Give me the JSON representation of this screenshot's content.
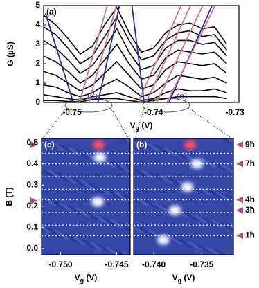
{
  "chart_data": [
    {
      "type": "line",
      "panel_label": "(a)",
      "ylabel": "G (µS)",
      "xlabel": [
        "V",
        "g",
        " (V)"
      ],
      "xlim": [
        -0.7535,
        -0.7295
      ],
      "ylim": [
        0,
        5
      ],
      "xticks": [
        -0.75,
        -0.74,
        -0.73
      ],
      "yticks": [
        0,
        1,
        2,
        3,
        4,
        5
      ],
      "annotations": [
        {
          "text": "(β)",
          "x": -0.7475,
          "y": 0.1
        },
        {
          "text": "(α)",
          "x": -0.7365,
          "y": 0.1
        }
      ],
      "series": [
        {
          "color": "#000000",
          "x": [
            -0.7535,
            -0.752,
            -0.7505,
            -0.749,
            -0.7475,
            -0.746,
            -0.7445,
            -0.743,
            -0.7415,
            -0.74,
            -0.7385,
            -0.737,
            -0.7355,
            -0.734,
            -0.7325,
            -0.731
          ],
          "values": [
            4.5,
            4.0,
            3.3,
            2.5,
            2.9,
            4.0,
            4.9,
            3.6,
            2.6,
            2.8,
            3.6,
            4.0,
            4.1,
            3.8,
            3.9,
            3.0
          ]
        },
        {
          "color": "#000000",
          "x": [
            -0.7535,
            -0.752,
            -0.7505,
            -0.749,
            -0.7475,
            -0.746,
            -0.7445,
            -0.743,
            -0.7415,
            -0.74,
            -0.7385,
            -0.737,
            -0.7355,
            -0.734,
            -0.7325,
            -0.731
          ],
          "values": [
            3.9,
            3.5,
            2.8,
            2.0,
            2.4,
            3.4,
            4.4,
            3.2,
            2.2,
            2.4,
            3.2,
            3.6,
            3.7,
            3.4,
            3.5,
            2.7
          ]
        },
        {
          "color": "#000000",
          "x": [
            -0.7535,
            -0.752,
            -0.7505,
            -0.749,
            -0.7475,
            -0.746,
            -0.7445,
            -0.743,
            -0.7415,
            -0.74,
            -0.7385,
            -0.737,
            -0.7355,
            -0.734,
            -0.7325,
            -0.731
          ],
          "values": [
            3.2,
            2.8,
            2.2,
            1.5,
            1.9,
            2.8,
            3.8,
            2.6,
            1.7,
            1.9,
            2.8,
            3.2,
            3.2,
            3.0,
            3.1,
            2.4
          ]
        },
        {
          "color": "#000000",
          "x": [
            -0.7535,
            -0.752,
            -0.7505,
            -0.749,
            -0.7475,
            -0.746,
            -0.7445,
            -0.743,
            -0.7415,
            -0.74,
            -0.7385,
            -0.737,
            -0.7355,
            -0.734,
            -0.7325,
            -0.731
          ],
          "values": [
            2.4,
            2.1,
            1.6,
            1.0,
            1.4,
            2.2,
            3.0,
            2.0,
            1.2,
            1.4,
            2.3,
            2.7,
            2.6,
            2.5,
            2.6,
            2.0
          ]
        },
        {
          "color": "#000000",
          "x": [
            -0.7535,
            -0.752,
            -0.7505,
            -0.749,
            -0.7475,
            -0.746,
            -0.7445,
            -0.743,
            -0.7415,
            -0.74,
            -0.7385,
            -0.737,
            -0.7355,
            -0.734,
            -0.7325,
            -0.731
          ],
          "values": [
            1.6,
            1.4,
            1.0,
            0.6,
            0.9,
            1.5,
            2.1,
            1.4,
            0.7,
            0.9,
            1.7,
            2.1,
            2.0,
            1.9,
            2.0,
            1.5
          ]
        },
        {
          "color": "#000000",
          "x": [
            -0.7535,
            -0.752,
            -0.7505,
            -0.749,
            -0.7475,
            -0.746,
            -0.7445,
            -0.743,
            -0.7415,
            -0.74,
            -0.7385,
            -0.737,
            -0.7355,
            -0.734,
            -0.7325,
            -0.731
          ],
          "values": [
            0.9,
            0.8,
            0.5,
            0.3,
            0.5,
            0.9,
            1.2,
            0.8,
            0.3,
            0.5,
            1.0,
            1.4,
            1.3,
            1.2,
            1.3,
            1.0
          ]
        },
        {
          "color": "#000000",
          "x": [
            -0.7535,
            -0.752,
            -0.7505,
            -0.749,
            -0.7475,
            -0.746,
            -0.7445,
            -0.743,
            -0.7415,
            -0.74,
            -0.7385,
            -0.737,
            -0.7355,
            -0.734,
            -0.7325,
            -0.731
          ],
          "values": [
            0.4,
            0.3,
            0.2,
            0.1,
            0.3,
            0.4,
            0.5,
            0.3,
            0.1,
            0.2,
            0.5,
            0.7,
            0.6,
            0.6,
            0.7,
            0.5
          ]
        },
        {
          "color": "#000000",
          "x": [
            -0.7535,
            -0.752,
            -0.7505,
            -0.749,
            -0.7475,
            -0.746,
            -0.7445,
            -0.743,
            -0.7415,
            -0.74,
            -0.7385,
            -0.737,
            -0.7355,
            -0.734,
            -0.7325,
            -0.731
          ],
          "values": [
            0.1,
            0.1,
            0.05,
            0.03,
            0.15,
            0.2,
            0.2,
            0.1,
            0.02,
            0.1,
            0.2,
            0.3,
            0.3,
            0.3,
            0.3,
            0.2
          ]
        },
        {
          "color": "#2a2aa8",
          "x": [
            -0.75326,
            -0.74985
          ],
          "values": [
            4.6,
            0
          ]
        },
        {
          "color": "#2a2aa8",
          "x": [
            -0.74682,
            -0.74417
          ],
          "values": [
            0,
            5
          ]
        },
        {
          "color": "#2a2aa8",
          "x": [
            -0.74265,
            -0.74114
          ],
          "values": [
            5,
            0
          ]
        },
        {
          "color": "#2a2aa8",
          "x": [
            -0.73811,
            -0.7328
          ],
          "values": [
            0,
            5
          ]
        },
        {
          "color": "#d07090",
          "x": [
            -0.74909,
            -0.74568
          ],
          "values": [
            0,
            5
          ]
        },
        {
          "color": "#d07090",
          "x": [
            -0.74795,
            -0.74455
          ],
          "values": [
            0,
            5
          ]
        },
        {
          "color": "#d07090",
          "x": [
            -0.74189,
            -0.73659
          ],
          "values": [
            0,
            5
          ]
        },
        {
          "color": "#d07090",
          "x": [
            -0.74091,
            -0.73545
          ],
          "values": [
            0,
            5
          ]
        },
        {
          "color": "#d07090",
          "x": [
            -0.73962,
            -0.73394
          ],
          "values": [
            0,
            5
          ]
        },
        {
          "color": "#d07090",
          "x": [
            -0.73833,
            -0.73242
          ],
          "values": [
            0,
            5
          ]
        }
      ]
    },
    {
      "type": "heatmap",
      "panel_label": "(c)",
      "ylabel": "B (T)",
      "xlabel": [
        "V",
        "g",
        " (V)"
      ],
      "xlim": [
        -0.7517,
        -0.7438
      ],
      "ylim": [
        -0.03,
        0.52
      ],
      "xticks": [
        {
          "value": -0.75,
          "label": "-0.750"
        },
        {
          "value": -0.745,
          "label": "-0.745"
        }
      ],
      "yticks": [
        {
          "value": 0,
          "label": "0.0"
        },
        0.1,
        0.2,
        0.3,
        0.4,
        0.5
      ],
      "background": "#3446a8",
      "hlines": [
        0.06,
        0.11,
        0.17,
        0.23,
        0.28,
        0.34,
        0.4,
        0.45
      ],
      "spots": [
        {
          "x": -0.7466,
          "y": 0.49,
          "color": "#ff5060"
        },
        {
          "x": -0.7465,
          "y": 0.43,
          "color": "#ffffff"
        },
        {
          "x": -0.7467,
          "y": 0.22,
          "color": "#ffffff"
        }
      ],
      "arrows": [
        {
          "y": 0.49
        },
        {
          "y": 0.225
        }
      ]
    },
    {
      "type": "heatmap",
      "panel_label": "(b)",
      "xlabel": [
        "V",
        "g",
        " (V)"
      ],
      "xlim": [
        -0.7421,
        -0.7317
      ],
      "ylim": [
        -0.03,
        0.52
      ],
      "xticks": [
        {
          "value": -0.74,
          "label": "-0.740"
        },
        {
          "value": -0.735,
          "label": "-0.735"
        }
      ],
      "background": "#3446a8",
      "hlines": [
        0.06,
        0.11,
        0.17,
        0.23,
        0.28,
        0.34,
        0.4,
        0.45
      ],
      "spots": [
        {
          "x": -0.7362,
          "y": 0.49,
          "color": "#ff5060"
        },
        {
          "x": -0.7355,
          "y": 0.4,
          "color": "#ffffff"
        },
        {
          "x": -0.7365,
          "y": 0.29,
          "color": "#ffffff"
        },
        {
          "x": -0.7378,
          "y": 0.18,
          "color": "#ffffff"
        },
        {
          "x": -0.739,
          "y": 0.04,
          "color": "#ffffff"
        }
      ],
      "arrows": [
        {
          "y": 0.49,
          "label": "9ħ"
        },
        {
          "y": 0.4,
          "label": "7ħ"
        },
        {
          "y": 0.23,
          "label": "4ħ"
        },
        {
          "y": 0.18,
          "label": "3ħ"
        },
        {
          "y": 0.06,
          "label": "1ħ"
        }
      ]
    }
  ]
}
